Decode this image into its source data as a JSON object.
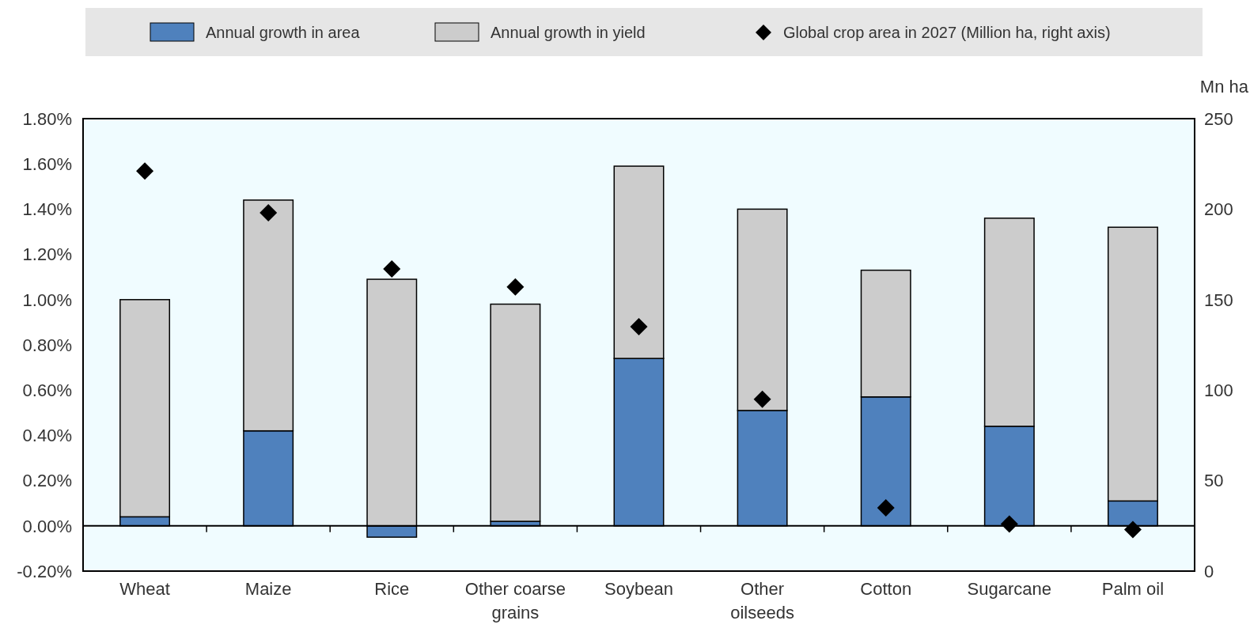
{
  "chart_data": {
    "type": "bar",
    "stacked": true,
    "categories": [
      "Wheat",
      "Maize",
      "Rice",
      "Other coarse grains",
      "Soybean",
      "Other oilseeds",
      "Cotton",
      "Sugarcane",
      "Palm oil"
    ],
    "series": [
      {
        "name": "Annual growth in area",
        "color": "#4f81bd",
        "values": [
          0.04,
          0.42,
          -0.05,
          0.02,
          0.74,
          0.51,
          0.57,
          0.44,
          0.11
        ]
      },
      {
        "name": "Annual growth in yield",
        "color": "#cccccc",
        "values": [
          0.96,
          1.02,
          1.09,
          0.96,
          0.85,
          0.89,
          0.56,
          0.92,
          1.21
        ]
      },
      {
        "name": "Global crop area in 2027 (Million ha, right axis)",
        "type": "scatter",
        "axis": "y2",
        "color": "#000000",
        "marker": "diamond",
        "values": [
          221,
          198,
          167,
          157,
          135,
          95,
          35,
          26,
          23
        ]
      }
    ],
    "ylim": [
      -0.2,
      1.8
    ],
    "yticks": [
      {
        "value": -0.2,
        "label": "-0.20%"
      },
      {
        "value": 0,
        "label": "0.00%"
      },
      {
        "value": 0.2,
        "label": "0.20%"
      },
      {
        "value": 0.4,
        "label": "0.40%"
      },
      {
        "value": 0.6,
        "label": "0.60%"
      },
      {
        "value": 0.8,
        "label": "0.80%"
      },
      {
        "value": 1.0,
        "label": "1.00%"
      },
      {
        "value": 1.2,
        "label": "1.20%"
      },
      {
        "value": 1.4,
        "label": "1.40%"
      },
      {
        "value": 1.6,
        "label": "1.60%"
      },
      {
        "value": 1.8,
        "label": "1.80%"
      }
    ],
    "y2lim": [
      0,
      250
    ],
    "y2ticks": [
      0,
      50,
      100,
      150,
      200,
      250
    ],
    "y2label": "Mn ha",
    "legend": "top"
  }
}
